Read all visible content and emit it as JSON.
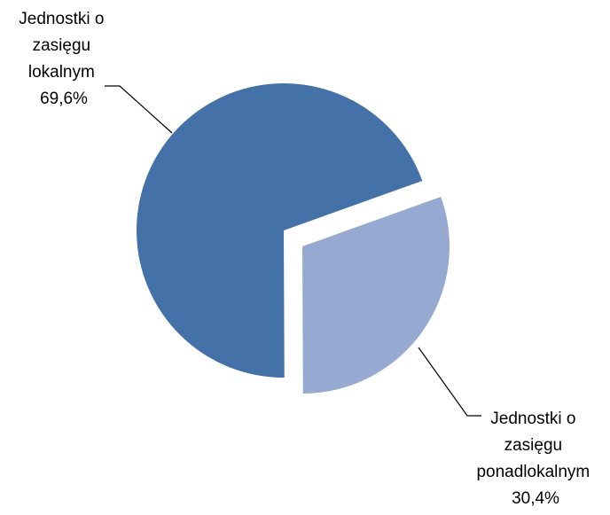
{
  "chart_data": {
    "type": "pie",
    "exploded": true,
    "legend": "none",
    "slices": [
      {
        "label": "Jednostki o zasięgu lokalnym",
        "value": 69.6,
        "value_label": "69,6%",
        "label_lines": [
          "Jednostki o",
          "zasięgu",
          "lokalnym",
          "69,6%"
        ],
        "color": "#4472A8"
      },
      {
        "label": "Jednostki o zasięgu ponadlokalnym",
        "value": 30.4,
        "value_label": "30,4%",
        "label_lines": [
          "Jednostki o",
          "zasięgu",
          "ponadlokalnym",
          "30,4%"
        ],
        "color": "#95A9D1"
      }
    ]
  }
}
